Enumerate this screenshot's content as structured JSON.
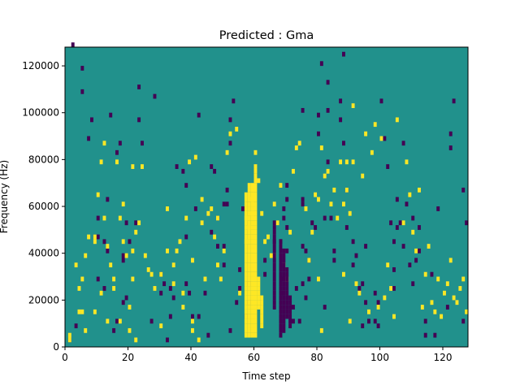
{
  "chart_data": {
    "type": "heatmap",
    "title": "Predicted : Gma",
    "xlabel": "Time step",
    "ylabel": "Frequency (Hz)",
    "xlim": [
      0,
      128
    ],
    "ylim": [
      0,
      128000
    ],
    "xticks": [
      0,
      20,
      40,
      60,
      80,
      100,
      120
    ],
    "yticks": [
      0,
      20000,
      40000,
      60000,
      80000,
      100000,
      120000
    ],
    "grid": false,
    "legend": "none",
    "n_time_steps": 128,
    "n_freq_bins": 64,
    "bin_width_hz": 2000,
    "colors": {
      "0": "#440154",
      "1": "#21918c",
      "2": "#fde725"
    },
    "background_value": 1,
    "cells_value_0": [
      [
        1,
        1
      ],
      [
        2,
        64
      ],
      [
        3,
        4
      ],
      [
        5,
        59
      ],
      [
        5,
        54
      ],
      [
        7,
        44
      ],
      [
        8,
        48
      ],
      [
        9,
        23
      ],
      [
        10,
        27
      ],
      [
        10,
        23
      ],
      [
        10,
        14
      ],
      [
        12,
        12
      ],
      [
        12,
        22
      ],
      [
        13,
        20
      ],
      [
        13,
        31
      ],
      [
        14,
        49
      ],
      [
        15,
        3
      ],
      [
        16,
        5
      ],
      [
        16,
        41
      ],
      [
        17,
        43
      ],
      [
        18,
        19
      ],
      [
        18,
        18
      ],
      [
        18,
        9
      ],
      [
        19,
        26
      ],
      [
        19,
        10
      ],
      [
        20,
        22
      ],
      [
        22,
        26
      ],
      [
        23,
        48
      ],
      [
        23,
        55
      ],
      [
        24,
        43
      ],
      [
        27,
        5
      ],
      [
        28,
        53
      ],
      [
        30,
        15
      ],
      [
        30,
        11
      ],
      [
        31,
        13
      ],
      [
        32,
        1
      ],
      [
        33,
        12
      ],
      [
        33,
        6
      ],
      [
        34,
        10
      ],
      [
        35,
        38
      ],
      [
        37,
        37
      ],
      [
        38,
        34
      ],
      [
        38,
        23
      ],
      [
        38,
        13
      ],
      [
        39,
        11
      ],
      [
        40,
        6
      ],
      [
        41,
        29
      ],
      [
        42,
        6
      ],
      [
        42,
        49
      ],
      [
        44,
        11
      ],
      [
        45,
        2
      ],
      [
        46,
        38
      ],
      [
        46,
        24
      ],
      [
        47,
        37
      ],
      [
        48,
        27
      ],
      [
        48,
        21
      ],
      [
        50,
        17
      ],
      [
        50,
        21
      ],
      [
        50,
        30
      ],
      [
        51,
        30
      ],
      [
        51,
        33
      ],
      [
        52,
        3
      ],
      [
        52,
        48
      ],
      [
        52,
        43
      ],
      [
        53,
        52
      ],
      [
        54,
        9
      ],
      [
        55,
        16
      ],
      [
        55,
        12
      ],
      [
        56,
        29
      ],
      [
        57,
        6
      ],
      [
        58,
        13
      ],
      [
        58,
        9
      ],
      [
        63,
        15
      ],
      [
        63,
        18
      ],
      [
        66,
        22
      ],
      [
        68,
        11
      ],
      [
        68,
        14
      ],
      [
        68,
        17
      ],
      [
        68,
        22
      ],
      [
        69,
        27
      ],
      [
        70,
        20
      ],
      [
        69,
        29
      ],
      [
        70,
        25
      ],
      [
        70,
        31
      ],
      [
        70,
        34
      ],
      [
        72,
        5
      ],
      [
        72,
        8
      ],
      [
        73,
        12
      ],
      [
        74,
        5
      ],
      [
        75,
        13
      ],
      [
        75,
        21
      ],
      [
        75,
        30
      ],
      [
        75,
        31
      ],
      [
        75,
        50
      ],
      [
        76,
        10
      ],
      [
        76,
        20
      ],
      [
        77,
        14
      ],
      [
        77,
        18
      ],
      [
        78,
        26
      ],
      [
        79,
        25
      ],
      [
        80,
        45
      ],
      [
        80,
        49
      ],
      [
        81,
        60
      ],
      [
        82,
        27
      ],
      [
        82,
        8
      ],
      [
        83,
        39
      ],
      [
        83,
        56
      ],
      [
        83,
        50
      ],
      [
        84,
        27
      ],
      [
        85,
        18
      ],
      [
        85,
        20
      ],
      [
        87,
        52
      ],
      [
        87,
        48
      ],
      [
        88,
        62
      ],
      [
        88,
        43
      ],
      [
        89,
        33
      ],
      [
        89,
        25
      ],
      [
        91,
        17
      ],
      [
        91,
        22
      ],
      [
        92,
        19
      ],
      [
        93,
        12
      ],
      [
        94,
        4
      ],
      [
        94,
        13
      ],
      [
        95,
        21
      ],
      [
        95,
        9
      ],
      [
        96,
        5
      ],
      [
        98,
        5
      ],
      [
        98,
        11
      ],
      [
        99,
        4
      ],
      [
        99,
        9
      ],
      [
        100,
        52
      ],
      [
        101,
        44
      ],
      [
        102,
        38
      ],
      [
        103,
        26
      ],
      [
        104,
        12
      ],
      [
        104,
        22
      ],
      [
        104,
        16
      ],
      [
        105,
        25
      ],
      [
        105,
        31
      ],
      [
        106,
        26
      ],
      [
        107,
        21
      ],
      [
        107,
        43
      ],
      [
        108,
        30
      ],
      [
        109,
        17
      ],
      [
        110,
        27
      ],
      [
        110,
        13
      ],
      [
        111,
        18
      ],
      [
        112,
        20
      ],
      [
        112,
        25
      ],
      [
        114,
        2
      ],
      [
        114,
        5
      ],
      [
        116,
        15
      ],
      [
        117,
        2
      ],
      [
        118,
        29
      ],
      [
        121,
        8
      ],
      [
        122,
        42
      ],
      [
        122,
        45
      ],
      [
        123,
        52
      ],
      [
        126,
        33
      ],
      [
        126,
        5
      ],
      [
        127,
        26
      ]
    ],
    "cells_value_2": [
      [
        1,
        1
      ],
      [
        1,
        2
      ],
      [
        3,
        17
      ],
      [
        4,
        12
      ],
      [
        4,
        7
      ],
      [
        5,
        7
      ],
      [
        5,
        14
      ],
      [
        6,
        3
      ],
      [
        6,
        19
      ],
      [
        7,
        23
      ],
      [
        9,
        23
      ],
      [
        9,
        22
      ],
      [
        9,
        7
      ],
      [
        10,
        32
      ],
      [
        11,
        11
      ],
      [
        11,
        39
      ],
      [
        12,
        43
      ],
      [
        12,
        27
      ],
      [
        13,
        21
      ],
      [
        13,
        5
      ],
      [
        14,
        17
      ],
      [
        15,
        14
      ],
      [
        15,
        12
      ],
      [
        16,
        39
      ],
      [
        17,
        27
      ],
      [
        17,
        5
      ],
      [
        18,
        30
      ],
      [
        18,
        22
      ],
      [
        19,
        19
      ],
      [
        20,
        3
      ],
      [
        20,
        8
      ],
      [
        21,
        14
      ],
      [
        21,
        20
      ],
      [
        21,
        38
      ],
      [
        22,
        1
      ],
      [
        22,
        24
      ],
      [
        23,
        26
      ],
      [
        24,
        38
      ],
      [
        25,
        19
      ],
      [
        26,
        16
      ],
      [
        27,
        15
      ],
      [
        28,
        12
      ],
      [
        30,
        15
      ],
      [
        30,
        4
      ],
      [
        32,
        29
      ],
      [
        32,
        20
      ],
      [
        34,
        13
      ],
      [
        34,
        17
      ],
      [
        35,
        20
      ],
      [
        36,
        22
      ],
      [
        37,
        8
      ],
      [
        37,
        11
      ],
      [
        38,
        27
      ],
      [
        39,
        39
      ],
      [
        40,
        3
      ],
      [
        40,
        18
      ],
      [
        40,
        5
      ],
      [
        41,
        40
      ],
      [
        42,
        1
      ],
      [
        43,
        26
      ],
      [
        43,
        31
      ],
      [
        44,
        14
      ],
      [
        45,
        28
      ],
      [
        46,
        29
      ],
      [
        47,
        23
      ],
      [
        48,
        17
      ],
      [
        48,
        27
      ],
      [
        49,
        14
      ],
      [
        50,
        20
      ],
      [
        51,
        41
      ],
      [
        52,
        45
      ],
      [
        54,
        46
      ],
      [
        55,
        11
      ],
      [
        57,
        22
      ],
      [
        57,
        27
      ],
      [
        58,
        25
      ],
      [
        59,
        28
      ],
      [
        59,
        31
      ],
      [
        60,
        41
      ],
      [
        61,
        35
      ],
      [
        62,
        28
      ],
      [
        63,
        22
      ],
      [
        64,
        23
      ],
      [
        65,
        19
      ],
      [
        66,
        30
      ],
      [
        66,
        19
      ],
      [
        67,
        26
      ],
      [
        68,
        34
      ],
      [
        69,
        17
      ],
      [
        70,
        14
      ],
      [
        71,
        24
      ],
      [
        72,
        37
      ],
      [
        73,
        42
      ],
      [
        74,
        43
      ],
      [
        76,
        29
      ],
      [
        77,
        18
      ],
      [
        78,
        24
      ],
      [
        79,
        32
      ],
      [
        80,
        31
      ],
      [
        80,
        14
      ],
      [
        81,
        42
      ],
      [
        81,
        3
      ],
      [
        82,
        36
      ],
      [
        83,
        37
      ],
      [
        84,
        30
      ],
      [
        85,
        33
      ],
      [
        86,
        27
      ],
      [
        87,
        39
      ],
      [
        88,
        15
      ],
      [
        88,
        30
      ],
      [
        89,
        39
      ],
      [
        89,
        33
      ],
      [
        90,
        28
      ],
      [
        90,
        5
      ],
      [
        91,
        51
      ],
      [
        91,
        39
      ],
      [
        92,
        13
      ],
      [
        93,
        11
      ],
      [
        94,
        36
      ],
      [
        95,
        45
      ],
      [
        96,
        7
      ],
      [
        97,
        41
      ],
      [
        98,
        47
      ],
      [
        99,
        8
      ],
      [
        100,
        44
      ],
      [
        101,
        10
      ],
      [
        102,
        17
      ],
      [
        103,
        12
      ],
      [
        104,
        6
      ],
      [
        105,
        48
      ],
      [
        107,
        26
      ],
      [
        108,
        39
      ],
      [
        109,
        32
      ],
      [
        110,
        24
      ],
      [
        111,
        20
      ],
      [
        112,
        33
      ],
      [
        113,
        8
      ],
      [
        114,
        15
      ],
      [
        115,
        21
      ],
      [
        116,
        9
      ],
      [
        117,
        7
      ],
      [
        118,
        14
      ],
      [
        119,
        6
      ],
      [
        120,
        11
      ],
      [
        121,
        13
      ],
      [
        122,
        18
      ],
      [
        123,
        10
      ],
      [
        124,
        9
      ],
      [
        125,
        12
      ],
      [
        126,
        14
      ],
      [
        127,
        7
      ]
    ],
    "vertical_band_value_2": [
      [
        57,
        2,
        32
      ],
      [
        58,
        2,
        34
      ],
      [
        59,
        2,
        34
      ],
      [
        60,
        2,
        38
      ],
      [
        61,
        8,
        14
      ],
      [
        62,
        4,
        10
      ]
    ],
    "vertical_band_value_0": [
      [
        66,
        8,
        26
      ],
      [
        68,
        2,
        22
      ],
      [
        69,
        3,
        20
      ],
      [
        70,
        6,
        16
      ],
      [
        71,
        4,
        10
      ]
    ]
  }
}
